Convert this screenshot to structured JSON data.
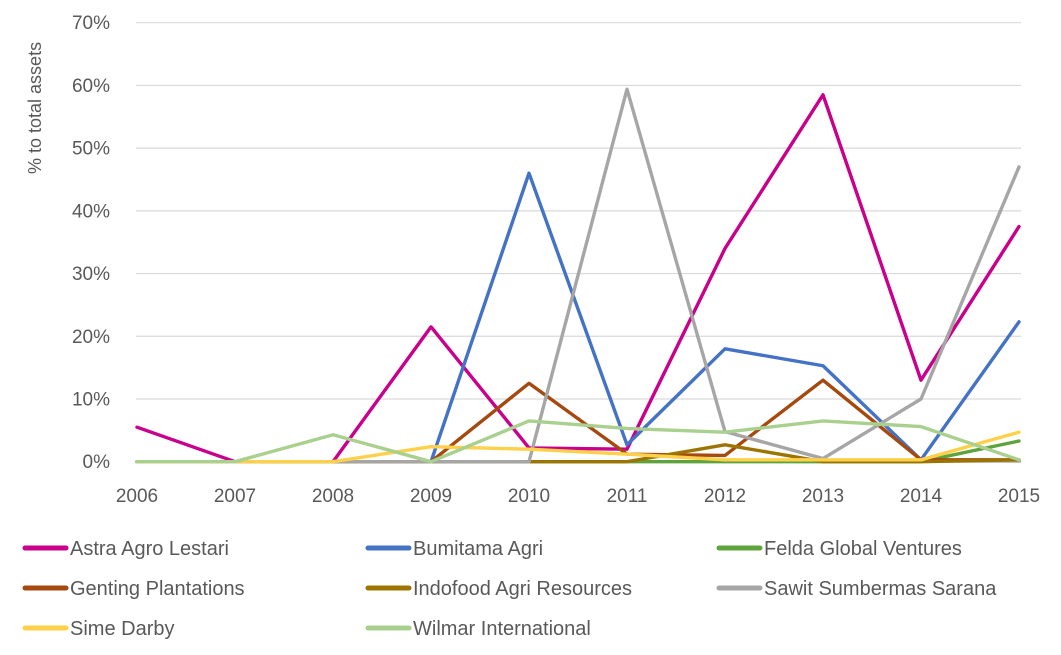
{
  "chart_data": {
    "type": "line",
    "title": "",
    "ylabel": "% to total assets",
    "xlabel": "",
    "categories": [
      "2006",
      "2007",
      "2008",
      "2009",
      "2010",
      "2011",
      "2012",
      "2013",
      "2014",
      "2015"
    ],
    "y_tick_labels": [
      "0%",
      "10%",
      "20%",
      "30%",
      "40%",
      "50%",
      "60%",
      "70%"
    ],
    "ylim": [
      0,
      70
    ],
    "y_tick_step": 10,
    "grid": true,
    "legend_position": "bottom",
    "series": [
      {
        "name": "Astra Agro Lestari",
        "color": "#C9008C",
        "values": [
          5.5,
          0,
          0,
          21.5,
          2.2,
          2.0,
          34.0,
          58.5,
          13.0,
          37.5
        ]
      },
      {
        "name": "Bumitama Agri",
        "color": "#4472C4",
        "values": [
          0,
          0,
          0,
          0,
          46.0,
          2.7,
          18.0,
          15.3,
          0.3,
          22.3
        ]
      },
      {
        "name": "Felda Global Ventures",
        "color": "#5FA33C",
        "values": [
          0,
          0,
          0,
          0,
          0,
          0,
          0,
          0,
          0,
          3.3
        ]
      },
      {
        "name": "Genting Plantations",
        "color": "#A5490F",
        "values": [
          0,
          0,
          0,
          0,
          12.5,
          1.2,
          1.0,
          13.0,
          0.3,
          0.3
        ]
      },
      {
        "name": "Indofood Agri Resources",
        "color": "#9C7500",
        "values": [
          0,
          0,
          0,
          0,
          0,
          0,
          2.7,
          0,
          0,
          0.3
        ]
      },
      {
        "name": "Sawit Sumbermas Sarana",
        "color": "#A6A6A6",
        "values": [
          0,
          0,
          0,
          0,
          0,
          59.4,
          4.8,
          0.5,
          10.0,
          47.0
        ]
      },
      {
        "name": "Sime Darby",
        "color": "#FFD04A",
        "values": [
          0,
          0,
          0,
          2.4,
          2.0,
          1.2,
          0.3,
          0.3,
          0.3,
          4.7
        ]
      },
      {
        "name": "Wilmar International",
        "color": "#A9D08E",
        "values": [
          0,
          0,
          4.3,
          0,
          6.5,
          5.3,
          4.7,
          6.5,
          5.6,
          0.3
        ]
      }
    ],
    "text_color": "#595959",
    "gridline_color": "#D9D9D9",
    "axis_line_color": "#ACACAC",
    "background_color": "#FFFFFF"
  }
}
